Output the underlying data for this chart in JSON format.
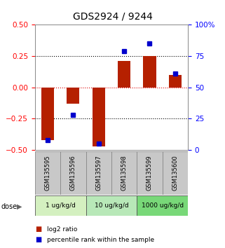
{
  "title": "GDS2924 / 9244",
  "samples": [
    "GSM135595",
    "GSM135596",
    "GSM135597",
    "GSM135598",
    "GSM135599",
    "GSM135600"
  ],
  "log2_ratio": [
    -0.42,
    -0.13,
    -0.47,
    0.21,
    0.25,
    0.1
  ],
  "percentile_rank": [
    8,
    28,
    5,
    79,
    85,
    61
  ],
  "dose_groups": [
    {
      "label": "1 ug/kg/d",
      "samples": [
        0,
        1
      ],
      "color": "#d4f0c0"
    },
    {
      "label": "10 ug/kg/d",
      "samples": [
        2,
        3
      ],
      "color": "#b8e8b8"
    },
    {
      "label": "1000 ug/kg/d",
      "samples": [
        4,
        5
      ],
      "color": "#78d878"
    }
  ],
  "bar_color": "#b52000",
  "dot_color": "#0000cc",
  "ylim_left": [
    -0.5,
    0.5
  ],
  "ylim_right": [
    0,
    100
  ],
  "yticks_left": [
    -0.5,
    -0.25,
    0,
    0.25,
    0.5
  ],
  "yticks_right": [
    0,
    25,
    50,
    75,
    100
  ],
  "bg_color": "#ffffff",
  "plot_bg": "#ffffff",
  "legend_items": [
    {
      "label": "log2 ratio",
      "color": "#b52000"
    },
    {
      "label": "percentile rank within the sample",
      "color": "#0000cc"
    }
  ]
}
